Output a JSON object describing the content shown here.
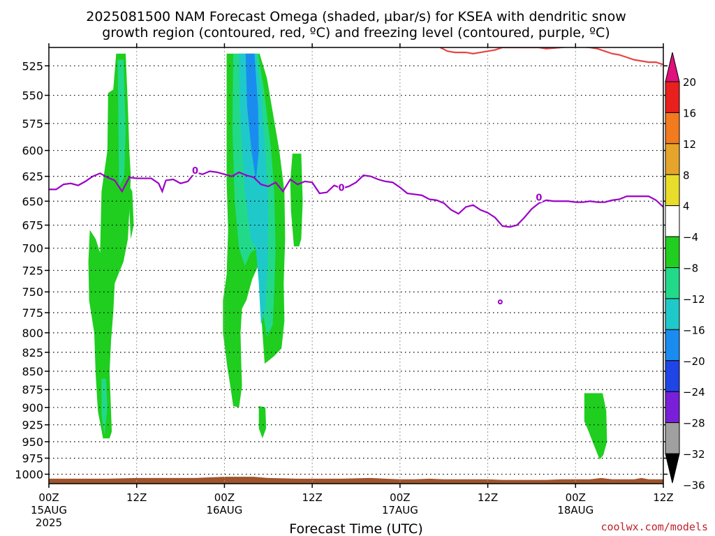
{
  "title": {
    "line1": "2025081500 NAM Forecast Omega (shaded, µbar/s) for KSEA with dendritic snow",
    "line2": "growth region (contoured, red, ºC) and freezing level (contoured, purple, ºC)"
  },
  "credit": "coolwx.com/models",
  "chart_data": {
    "type": "time-height contour",
    "xlabel": "Forecast Time (UTC)",
    "x_ticks": [
      {
        "hour": 0,
        "label": "00Z",
        "date": "15AUG",
        "year": "2025"
      },
      {
        "hour": 12,
        "label": "12Z"
      },
      {
        "hour": 24,
        "label": "00Z",
        "date": "16AUG"
      },
      {
        "hour": 36,
        "label": "12Z"
      },
      {
        "hour": 48,
        "label": "00Z",
        "date": "17AUG"
      },
      {
        "hour": 60,
        "label": "12Z"
      },
      {
        "hour": 72,
        "label": "00Z",
        "date": "18AUG"
      },
      {
        "hour": 84,
        "label": "12Z"
      }
    ],
    "x_range_hours": [
      0,
      84
    ],
    "y_axis": "pressure (mb)",
    "y_range": [
      1015,
      510
    ],
    "y_scale": "log",
    "y_ticks": [
      525,
      550,
      575,
      600,
      625,
      650,
      675,
      700,
      725,
      750,
      775,
      800,
      825,
      850,
      875,
      900,
      925,
      950,
      975,
      1000
    ],
    "grid": true,
    "colorbar": {
      "levels": [
        20,
        16,
        12,
        8,
        4,
        -4,
        -8,
        -12,
        -16,
        -20,
        -24,
        -28,
        -32,
        -36
      ],
      "colors": [
        "#e8201e",
        "#f27a1f",
        "#e6a52a",
        "#e8dd2a",
        "#ffffff",
        "#1fce1f",
        "#22d98a",
        "#1fc9c9",
        "#1a8cf0",
        "#1f45e6",
        "#7a1fd9",
        "#a412c8",
        "#a0a0a0"
      ],
      "max_arrow_color": "#e0107e",
      "min_arrow_color": "#000000"
    },
    "omega_regions": [
      {
        "color": "#1fce1f",
        "points": [
          [
            9.2,
            515
          ],
          [
            10.5,
            515
          ],
          [
            10.8,
            560
          ],
          [
            11.0,
            600
          ],
          [
            11.2,
            625
          ],
          [
            11.0,
            660
          ],
          [
            10.8,
            690
          ],
          [
            10.2,
            715
          ],
          [
            9.0,
            740
          ],
          [
            8.8,
            775
          ],
          [
            8.5,
            810
          ],
          [
            8.3,
            850
          ],
          [
            8.4,
            880
          ],
          [
            8.5,
            905
          ],
          [
            8.6,
            935
          ],
          [
            8.3,
            945
          ],
          [
            7.4,
            945
          ],
          [
            6.7,
            905
          ],
          [
            6.4,
            855
          ],
          [
            6.2,
            800
          ],
          [
            5.5,
            760
          ],
          [
            5.4,
            715
          ],
          [
            5.6,
            680
          ],
          [
            6.4,
            690
          ],
          [
            7.0,
            705
          ],
          [
            7.2,
            640
          ],
          [
            8.0,
            600
          ],
          [
            8.1,
            548
          ],
          [
            8.8,
            545
          ]
        ]
      },
      {
        "color": "#22d98a",
        "points": [
          [
            9.4,
            520
          ],
          [
            10.2,
            520
          ],
          [
            10.5,
            580
          ],
          [
            10.3,
            625
          ],
          [
            9.6,
            635
          ]
        ]
      },
      {
        "color": "#22d98a",
        "points": [
          [
            7.2,
            860
          ],
          [
            7.8,
            860
          ],
          [
            8.0,
            900
          ],
          [
            7.6,
            940
          ],
          [
            7.2,
            910
          ]
        ]
      },
      {
        "color": "#1fce1f",
        "points": [
          [
            11.0,
            635
          ],
          [
            11.4,
            640
          ],
          [
            11.6,
            675
          ],
          [
            11.2,
            690
          ],
          [
            11.0,
            660
          ]
        ]
      },
      {
        "color": "#1fce1f",
        "points": [
          [
            24.3,
            515
          ],
          [
            28.8,
            515
          ],
          [
            29.8,
            535
          ],
          [
            31.5,
            600
          ],
          [
            32.2,
            640
          ],
          [
            32.3,
            690
          ],
          [
            32.1,
            740
          ],
          [
            32.2,
            785
          ],
          [
            31.8,
            820
          ],
          [
            30.8,
            830
          ],
          [
            29.5,
            840
          ],
          [
            29.2,
            800
          ],
          [
            28.6,
            720
          ],
          [
            27.8,
            735
          ],
          [
            27.0,
            760
          ],
          [
            26.4,
            770
          ],
          [
            26.2,
            800
          ],
          [
            26.3,
            840
          ],
          [
            26.4,
            870
          ],
          [
            26.0,
            900
          ],
          [
            25.2,
            898
          ],
          [
            24.8,
            870
          ],
          [
            24.4,
            845
          ],
          [
            23.8,
            800
          ],
          [
            23.8,
            760
          ],
          [
            24.3,
            730
          ],
          [
            24.5,
            680
          ],
          [
            24.3,
            630
          ],
          [
            24.3,
            570
          ]
        ]
      },
      {
        "color": "#22d98a",
        "points": [
          [
            25.2,
            515
          ],
          [
            28.6,
            515
          ],
          [
            29.4,
            545
          ],
          [
            30.4,
            600
          ],
          [
            30.8,
            640
          ],
          [
            31.0,
            700
          ],
          [
            30.8,
            750
          ],
          [
            30.6,
            790
          ],
          [
            29.8,
            805
          ],
          [
            29.0,
            760
          ],
          [
            28.5,
            700
          ],
          [
            27.6,
            705
          ],
          [
            26.8,
            720
          ],
          [
            26.0,
            700
          ],
          [
            25.4,
            650
          ],
          [
            25.1,
            580
          ]
        ]
      },
      {
        "color": "#1fc9c9",
        "points": [
          [
            26.0,
            515
          ],
          [
            28.3,
            515
          ],
          [
            28.9,
            540
          ],
          [
            29.6,
            600
          ],
          [
            30.0,
            650
          ],
          [
            29.9,
            720
          ],
          [
            29.6,
            770
          ],
          [
            29.0,
            790
          ],
          [
            28.7,
            740
          ],
          [
            28.3,
            700
          ],
          [
            27.6,
            690
          ],
          [
            26.9,
            650
          ],
          [
            26.4,
            600
          ],
          [
            26.1,
            560
          ]
        ]
      },
      {
        "color": "#1a8cf0",
        "points": [
          [
            26.9,
            515
          ],
          [
            28.1,
            515
          ],
          [
            28.6,
            560
          ],
          [
            28.7,
            600
          ],
          [
            28.3,
            630
          ],
          [
            27.7,
            600
          ],
          [
            27.1,
            560
          ]
        ]
      },
      {
        "color": "#1fce1f",
        "points": [
          [
            28.7,
            898
          ],
          [
            29.6,
            900
          ],
          [
            29.7,
            930
          ],
          [
            29.2,
            945
          ],
          [
            28.7,
            930
          ]
        ]
      },
      {
        "color": "#1fce1f",
        "points": [
          [
            33.3,
            603
          ],
          [
            34.5,
            603
          ],
          [
            34.7,
            650
          ],
          [
            34.5,
            690
          ],
          [
            34.2,
            698
          ],
          [
            33.5,
            698
          ],
          [
            33.1,
            660
          ],
          [
            33.0,
            630
          ]
        ]
      },
      {
        "color": "#1fce1f",
        "points": [
          [
            73.2,
            880
          ],
          [
            75.7,
            880
          ],
          [
            76.2,
            905
          ],
          [
            76.3,
            950
          ],
          [
            75.8,
            970
          ],
          [
            75.3,
            977
          ],
          [
            74.5,
            955
          ],
          [
            73.8,
            935
          ],
          [
            73.2,
            920
          ]
        ]
      }
    ],
    "freezing_level": {
      "color": "#9b00c8",
      "label": "0",
      "points": [
        [
          0,
          638
        ],
        [
          1,
          638
        ],
        [
          2,
          633
        ],
        [
          3,
          632
        ],
        [
          4,
          634
        ],
        [
          5,
          630
        ],
        [
          6,
          625
        ],
        [
          7,
          622
        ],
        [
          8,
          626
        ],
        [
          9,
          629
        ],
        [
          10,
          640
        ],
        [
          11,
          626
        ],
        [
          12,
          627
        ],
        [
          13,
          627
        ],
        [
          14,
          627
        ],
        [
          15,
          632
        ],
        [
          15.5,
          640
        ],
        [
          16,
          629
        ],
        [
          17,
          628
        ],
        [
          18,
          632
        ],
        [
          19,
          630
        ],
        [
          20,
          621
        ],
        [
          21,
          623
        ],
        [
          22,
          620
        ],
        [
          23,
          621
        ],
        [
          24,
          623
        ],
        [
          25,
          625
        ],
        [
          26,
          621
        ],
        [
          27,
          624
        ],
        [
          28,
          626
        ],
        [
          29,
          633
        ],
        [
          30,
          635
        ],
        [
          31,
          631
        ],
        [
          32,
          640
        ],
        [
          33,
          628
        ],
        [
          34,
          633
        ],
        [
          35,
          630
        ],
        [
          36,
          631
        ],
        [
          37,
          642
        ],
        [
          38,
          641
        ],
        [
          39,
          634
        ],
        [
          40,
          637
        ],
        [
          41,
          635
        ],
        [
          42,
          631
        ],
        [
          43,
          624
        ],
        [
          44,
          625
        ],
        [
          45,
          628
        ],
        [
          46,
          630
        ],
        [
          47,
          631
        ],
        [
          48,
          636
        ],
        [
          49,
          642
        ],
        [
          50,
          643
        ],
        [
          51,
          644
        ],
        [
          52,
          648
        ],
        [
          53,
          649
        ],
        [
          54,
          652
        ],
        [
          55,
          659
        ],
        [
          56,
          663
        ],
        [
          57,
          656
        ],
        [
          58,
          654
        ],
        [
          59,
          659
        ],
        [
          60,
          662
        ],
        [
          61,
          667
        ],
        [
          62,
          676
        ],
        [
          63,
          677
        ],
        [
          64,
          675
        ],
        [
          65,
          667
        ],
        [
          66,
          658
        ],
        [
          67,
          652
        ],
        [
          68,
          649
        ],
        [
          69,
          650
        ],
        [
          70,
          650
        ],
        [
          71,
          650
        ],
        [
          72,
          651
        ],
        [
          73,
          651
        ],
        [
          74,
          650
        ],
        [
          75,
          651
        ],
        [
          76,
          651
        ],
        [
          77,
          649
        ],
        [
          78,
          648
        ],
        [
          79,
          645
        ],
        [
          80,
          645
        ],
        [
          81,
          645
        ],
        [
          82,
          645
        ],
        [
          83,
          649
        ],
        [
          84,
          656
        ]
      ],
      "labels": [
        [
          20,
          619
        ],
        [
          40,
          636
        ],
        [
          67,
          646
        ]
      ],
      "isolated_contour": [
        61.7,
        762
      ]
    },
    "dgz_contour": {
      "color": "#e84444",
      "points": [
        [
          53.5,
          510
        ],
        [
          54.5,
          513
        ],
        [
          55.5,
          514
        ],
        [
          57,
          514
        ],
        [
          58,
          515
        ],
        [
          59,
          514
        ],
        [
          60,
          513
        ],
        [
          61,
          512
        ],
        [
          62,
          510
        ],
        [
          64,
          510
        ],
        [
          66,
          510
        ],
        [
          67,
          510
        ],
        [
          68,
          511
        ],
        [
          70,
          510
        ],
        [
          72,
          509
        ],
        [
          74,
          510
        ],
        [
          75,
          511
        ],
        [
          76,
          513
        ],
        [
          77,
          515
        ],
        [
          78,
          516
        ],
        [
          79,
          518
        ],
        [
          80,
          520
        ],
        [
          81,
          521
        ],
        [
          82,
          522
        ],
        [
          83,
          522
        ],
        [
          84,
          524
        ]
      ]
    },
    "terrain": {
      "color": "#a0542c",
      "top_points": [
        [
          0,
          1007
        ],
        [
          8,
          1007
        ],
        [
          12,
          1006
        ],
        [
          20,
          1006
        ],
        [
          24,
          1004
        ],
        [
          28,
          1004
        ],
        [
          30,
          1006
        ],
        [
          34,
          1007
        ],
        [
          40,
          1007
        ],
        [
          44,
          1006
        ],
        [
          46,
          1007
        ],
        [
          48,
          1008
        ],
        [
          50,
          1008
        ],
        [
          52,
          1007
        ],
        [
          54,
          1008
        ],
        [
          60,
          1008
        ],
        [
          62,
          1009
        ],
        [
          68,
          1009
        ],
        [
          70,
          1008
        ],
        [
          74,
          1008
        ],
        [
          75.5,
          1006
        ],
        [
          77,
          1008
        ],
        [
          80,
          1008
        ],
        [
          81,
          1006
        ],
        [
          82,
          1008
        ],
        [
          84,
          1008
        ]
      ]
    }
  }
}
